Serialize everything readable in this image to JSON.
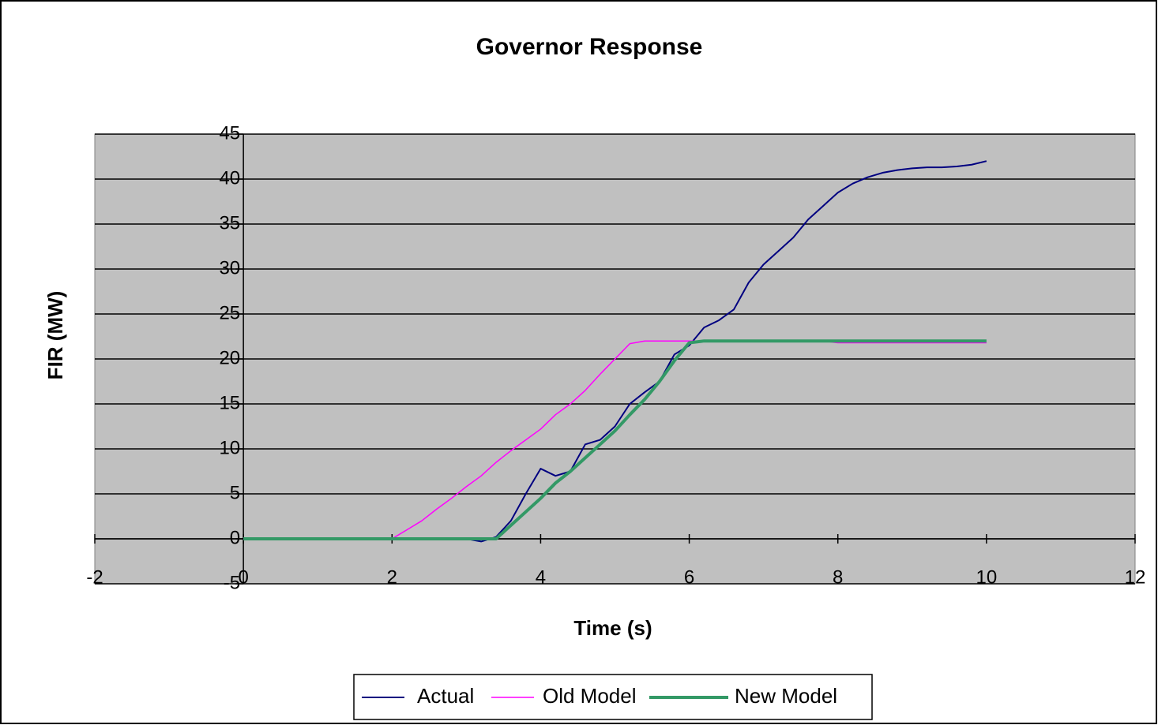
{
  "chart_data": {
    "type": "line",
    "title": "Governor Response",
    "x_label": "Time (s)",
    "y_label": "FIR (MW)",
    "x": [
      0,
      0.2,
      0.4,
      0.6,
      0.8,
      1,
      1.2,
      1.4,
      1.6,
      1.8,
      2,
      2.2,
      2.4,
      2.6,
      2.8,
      3,
      3.2,
      3.4,
      3.6,
      3.8,
      4,
      4.2,
      4.4,
      4.6,
      4.8,
      5,
      5.2,
      5.4,
      5.6,
      5.8,
      6,
      6.2,
      6.4,
      6.6,
      6.8,
      7,
      7.2,
      7.4,
      7.6,
      7.8,
      8,
      8.2,
      8.4,
      8.6,
      8.8,
      9,
      9.2,
      9.4,
      9.6,
      9.8,
      10
    ],
    "series": [
      {
        "name": "Actual",
        "color": "#000080",
        "values": [
          0,
          0,
          0,
          0,
          0,
          0,
          0,
          0,
          0,
          0,
          0,
          0,
          0,
          0,
          0,
          0,
          -0.3,
          0.2,
          2,
          5,
          7.8,
          7,
          7.5,
          10.5,
          11,
          12.5,
          15,
          16.3,
          17.5,
          20.5,
          21.5,
          23.5,
          24.3,
          25.5,
          28.5,
          30.5,
          32,
          33.5,
          35.5,
          37,
          38.5,
          39.5,
          40.2,
          40.7,
          41,
          41.2,
          41.3,
          41.3,
          41.4,
          41.6,
          42
        ]
      },
      {
        "name": "Old Model",
        "color": "#ff00ff",
        "values": [
          0,
          0,
          0,
          0,
          0,
          0,
          0,
          0,
          0,
          0,
          0,
          1,
          2,
          3.3,
          4.5,
          5.8,
          7,
          8.5,
          9.8,
          11,
          12.2,
          13.8,
          15,
          16.5,
          18.3,
          20,
          21.7,
          22,
          22,
          22,
          22,
          22,
          22,
          22,
          22,
          22,
          22,
          22,
          22,
          22,
          21.8,
          21.8,
          21.8,
          21.8,
          21.8,
          21.8,
          21.8,
          21.8,
          21.8,
          21.8,
          21.8
        ]
      },
      {
        "name": "New Model",
        "color": "#339966",
        "values": [
          0,
          0,
          0,
          0,
          0,
          0,
          0,
          0,
          0,
          0,
          0,
          0,
          0,
          0,
          0,
          0,
          0,
          0,
          1.5,
          3,
          4.5,
          6.2,
          7.5,
          9,
          10.5,
          12,
          13.8,
          15.5,
          17.5,
          19.8,
          21.8,
          22,
          22,
          22,
          22,
          22,
          22,
          22,
          22,
          22,
          22,
          22,
          22,
          22,
          22,
          22,
          22,
          22,
          22,
          22,
          22
        ]
      }
    ],
    "xlim": [
      -2,
      12
    ],
    "xticks": [
      -2,
      0,
      2,
      4,
      6,
      8,
      10,
      12
    ],
    "ylim": [
      -5,
      45
    ],
    "yticks": [
      -5,
      0,
      5,
      10,
      15,
      20,
      25,
      30,
      35,
      40,
      45
    ],
    "grid": true,
    "legend": "bottom"
  }
}
